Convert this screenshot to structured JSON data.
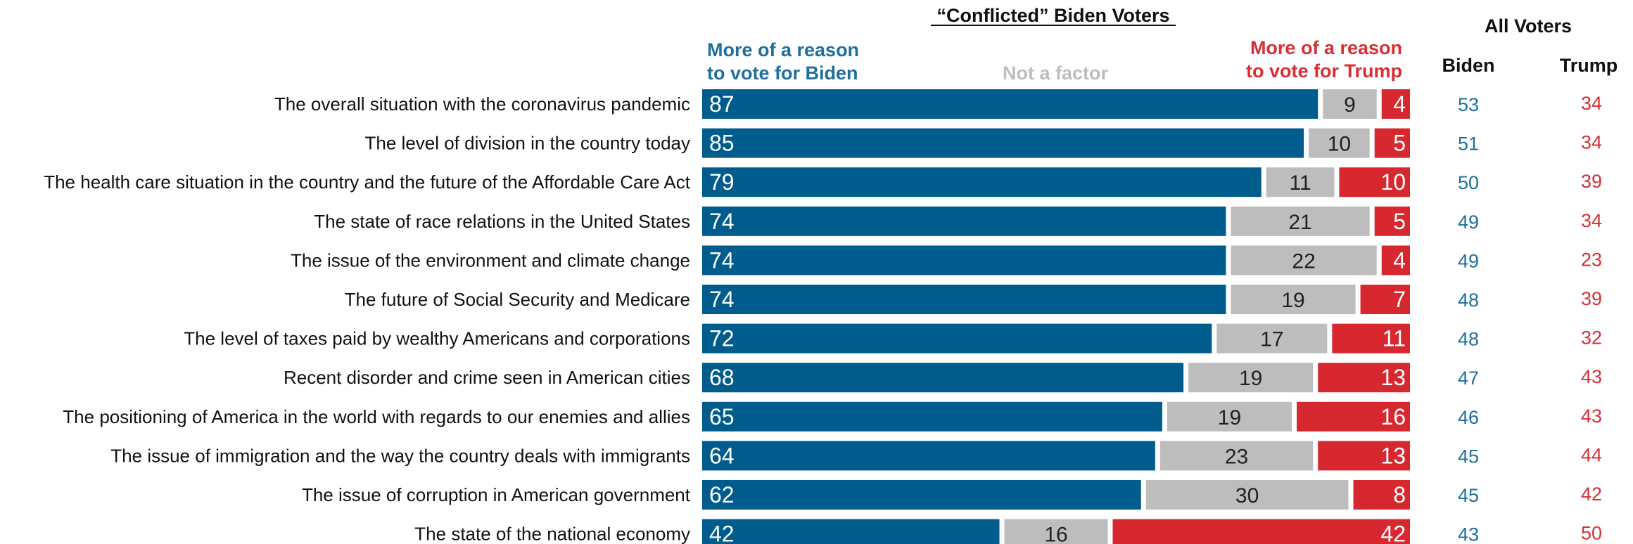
{
  "chart_data": {
    "type": "bar",
    "stacked": true,
    "orientation": "horizontal",
    "title": "“Conflicted” Biden Voters",
    "segment_labels": {
      "biden": "More of a reason to vote for Biden",
      "neutral": "Not a factor",
      "trump": "More of a reason to vote for Trump"
    },
    "all_voters": {
      "title": "All Voters",
      "biden_label": "Biden",
      "trump_label": "Trump"
    },
    "colors": {
      "biden": "#005c8c",
      "neutral": "#bdbdbd",
      "trump": "#d7282f"
    },
    "xlim": [
      0,
      100
    ],
    "categories": [
      "The overall situation with the coronavirus pandemic",
      "The level of division in the country today",
      "The health care situation in the country and the future of the Affordable Care Act",
      "The state of race relations in the United States",
      "The issue of the environment and climate change",
      "The future of Social Security and Medicare",
      "The level of taxes paid by wealthy Americans and corporations",
      "Recent disorder and crime seen in American cities",
      "The positioning of America in the world with regards to our enemies and allies",
      "The issue of immigration and the way the country deals with immigrants",
      "The issue of corruption in American government",
      "The state of the national economy"
    ],
    "series": [
      {
        "key": "biden",
        "name": "More of a reason to vote for Biden",
        "values": [
          87,
          85,
          79,
          74,
          74,
          74,
          72,
          68,
          65,
          64,
          62,
          42
        ]
      },
      {
        "key": "neutral",
        "name": "Not a factor",
        "values": [
          9,
          10,
          11,
          21,
          22,
          19,
          17,
          19,
          19,
          23,
          30,
          16
        ]
      },
      {
        "key": "trump",
        "name": "More of a reason to vote for Trump",
        "values": [
          4,
          5,
          10,
          5,
          4,
          7,
          11,
          13,
          16,
          13,
          8,
          42
        ]
      }
    ],
    "all_voters_biden": [
      53,
      51,
      50,
      49,
      49,
      48,
      48,
      47,
      46,
      45,
      45,
      43
    ],
    "all_voters_trump": [
      34,
      34,
      39,
      34,
      23,
      39,
      32,
      43,
      43,
      44,
      42,
      50
    ]
  }
}
